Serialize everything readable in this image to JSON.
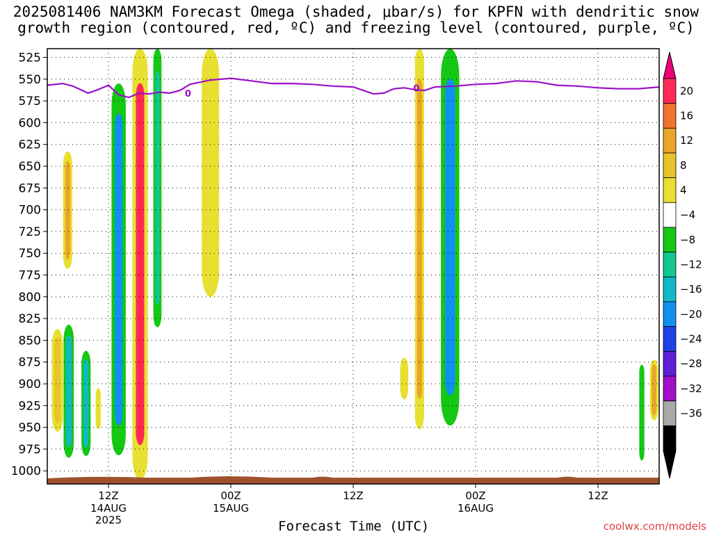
{
  "title": {
    "line1": "2025081406 NAM3KM Forecast Omega (shaded, μbar/s) for KPFN with dendritic snow",
    "line2": "growth region (contoured, red, ºC) and freezing level (contoured, purple, ºC)"
  },
  "credit": "coolwx.com/models",
  "chart_data": {
    "type": "heatmap",
    "xlabel": "Forecast Time (UTC)",
    "x_ticks": [
      {
        "label": "12Z",
        "sub": [
          "14AUG",
          "2025"
        ],
        "hour": 6
      },
      {
        "label": "00Z",
        "sub": [
          "15AUG"
        ],
        "hour": 18
      },
      {
        "label": "12Z",
        "sub": [],
        "hour": 30
      },
      {
        "label": "00Z",
        "sub": [
          "16AUG"
        ],
        "hour": 42
      },
      {
        "label": "12Z",
        "sub": [],
        "hour": 54
      }
    ],
    "x_range_hours": [
      0,
      60
    ],
    "y_ticks": [
      525,
      550,
      575,
      600,
      625,
      650,
      675,
      700,
      725,
      750,
      775,
      800,
      825,
      850,
      875,
      900,
      925,
      950,
      975,
      1000
    ],
    "y_range": [
      515,
      1015
    ],
    "grid": true,
    "colorbar": {
      "labels": [
        "20",
        "16",
        "12",
        "8",
        "4",
        "−4",
        "−8",
        "−12",
        "−16",
        "−20",
        "−24",
        "−28",
        "−32",
        "−36"
      ],
      "colors": [
        "#ff2a55",
        "#f0742c",
        "#e9a52a",
        "#e7c52a",
        "#e8e030",
        "#ffffff",
        "#14c814",
        "#10c890",
        "#10b8c8",
        "#1090f0",
        "#2040e8",
        "#6020d8",
        "#a010c8",
        "#a8a8a8",
        "#000000"
      ],
      "top_arrow_color": "#ee0077",
      "bottom_arrow_color": "#000000"
    },
    "freezing_level": {
      "label": "0",
      "points": [
        [
          0,
          557
        ],
        [
          1.5,
          555
        ],
        [
          2.5,
          558
        ],
        [
          4,
          566
        ],
        [
          5,
          562
        ],
        [
          6,
          557
        ],
        [
          7,
          568
        ],
        [
          8,
          571
        ],
        [
          9,
          566
        ],
        [
          10,
          567
        ],
        [
          11,
          565
        ],
        [
          12,
          566
        ],
        [
          13,
          563
        ],
        [
          14,
          556
        ],
        [
          16,
          551
        ],
        [
          18,
          549
        ],
        [
          20,
          552
        ],
        [
          22,
          555
        ],
        [
          24,
          555
        ],
        [
          26,
          556
        ],
        [
          28,
          558
        ],
        [
          30,
          559
        ],
        [
          31,
          563
        ],
        [
          32,
          567
        ],
        [
          33,
          566
        ],
        [
          34,
          561
        ],
        [
          35,
          560
        ],
        [
          36,
          562
        ],
        [
          37,
          563
        ],
        [
          38,
          559
        ],
        [
          40,
          558
        ],
        [
          42,
          556
        ],
        [
          44,
          555
        ],
        [
          46,
          552
        ],
        [
          48,
          553
        ],
        [
          50,
          557
        ],
        [
          52,
          558
        ],
        [
          54,
          560
        ],
        [
          56,
          561
        ],
        [
          58,
          561
        ],
        [
          60,
          559
        ]
      ]
    },
    "omega_regions": [
      {
        "hour": 1.0,
        "p_top": 837,
        "p_bot": 955,
        "half_width": 0.55,
        "core": "#e7c52a"
      },
      {
        "hour": 2.0,
        "p_top": 633,
        "p_bot": 768,
        "half_width": 0.45,
        "core": "#e9a52a"
      },
      {
        "hour": 2.1,
        "p_top": 832,
        "p_bot": 985,
        "half_width": 0.5,
        "core": "#10b8c8"
      },
      {
        "hour": 3.8,
        "p_top": 862,
        "p_bot": 983,
        "half_width": 0.45,
        "core": "#10b8c8"
      },
      {
        "hour": 5.0,
        "p_top": 905,
        "p_bot": 952,
        "half_width": 0.25,
        "core": "#e8e030"
      },
      {
        "hour": 7.0,
        "p_top": 555,
        "p_bot": 982,
        "half_width": 0.7,
        "core": "#1090f0"
      },
      {
        "hour": 9.1,
        "p_top": 515,
        "p_bot": 1010,
        "half_width": 0.75,
        "core": "#ff2a55"
      },
      {
        "hour": 10.8,
        "p_top": 515,
        "p_bot": 835,
        "half_width": 0.4,
        "core": "#10c890"
      },
      {
        "hour": 16.0,
        "p_top": 515,
        "p_bot": 800,
        "half_width": 0.85,
        "core": "#e8e030"
      },
      {
        "hour": 35.0,
        "p_top": 870,
        "p_bot": 918,
        "half_width": 0.4,
        "core": "#e8e030"
      },
      {
        "hour": 36.5,
        "p_top": 515,
        "p_bot": 952,
        "half_width": 0.45,
        "core": "#e9a52a"
      },
      {
        "hour": 39.5,
        "p_top": 515,
        "p_bot": 948,
        "half_width": 0.9,
        "core": "#1090f0"
      },
      {
        "hour": 58.3,
        "p_top": 878,
        "p_bot": 988,
        "half_width": 0.25,
        "core": "#14c814"
      },
      {
        "hour": 59.5,
        "p_top": 872,
        "p_bot": 942,
        "half_width": 0.4,
        "core": "#e9a52a"
      }
    ],
    "terrain_color": "#a0522d"
  }
}
